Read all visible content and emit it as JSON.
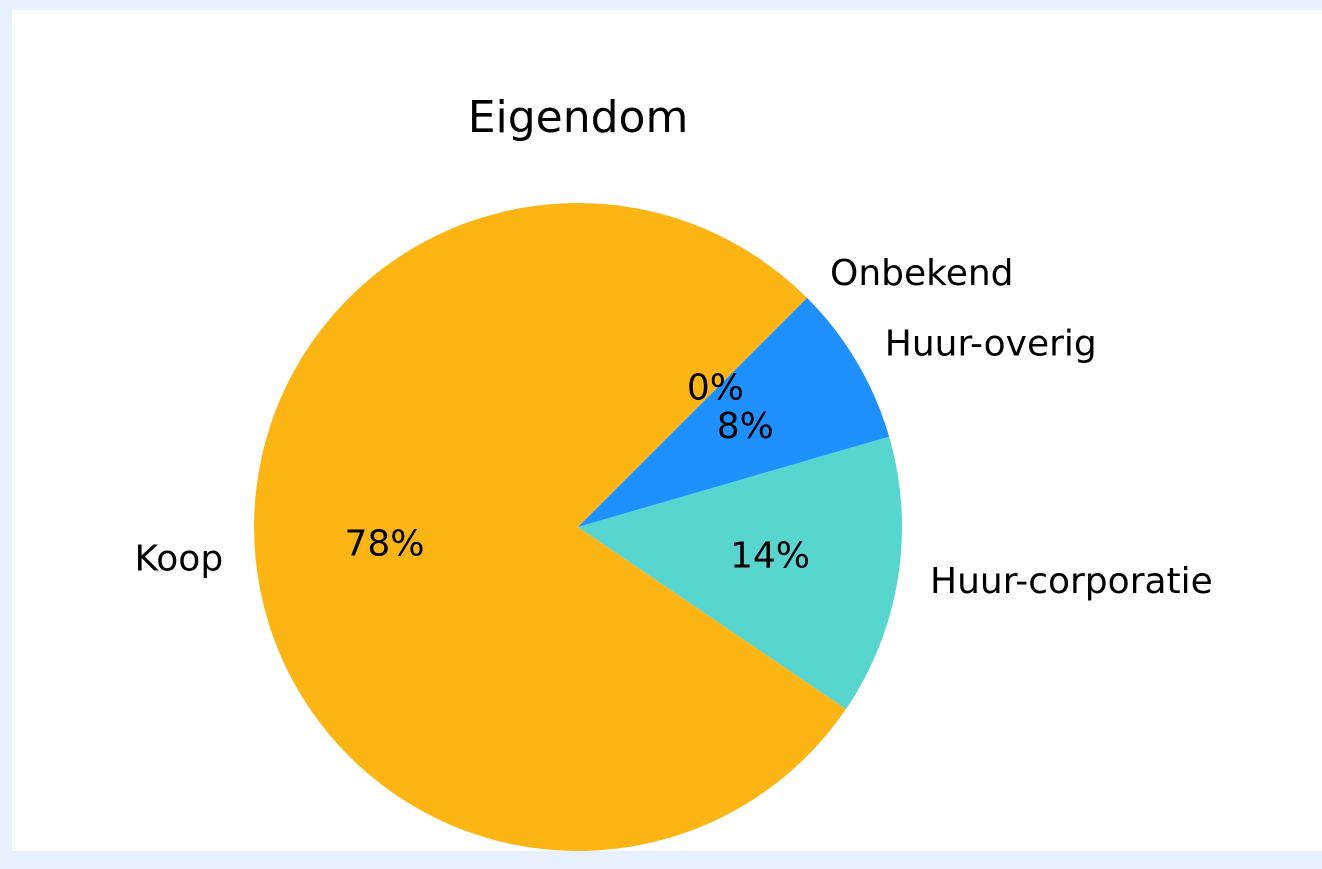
{
  "chart_data": {
    "type": "pie",
    "title": "Eigendom",
    "categories": [
      "Koop",
      "Huur-corporatie",
      "Huur-overig",
      "Onbekend"
    ],
    "values": [
      78,
      14,
      8,
      0
    ],
    "value_labels": [
      "78%",
      "14%",
      "8%",
      "0%"
    ],
    "colors": [
      "#fdb515",
      "#59d5d0",
      "#1e90ff",
      "#ff7f0e"
    ],
    "startangle": 45,
    "counterclockwise": true
  }
}
